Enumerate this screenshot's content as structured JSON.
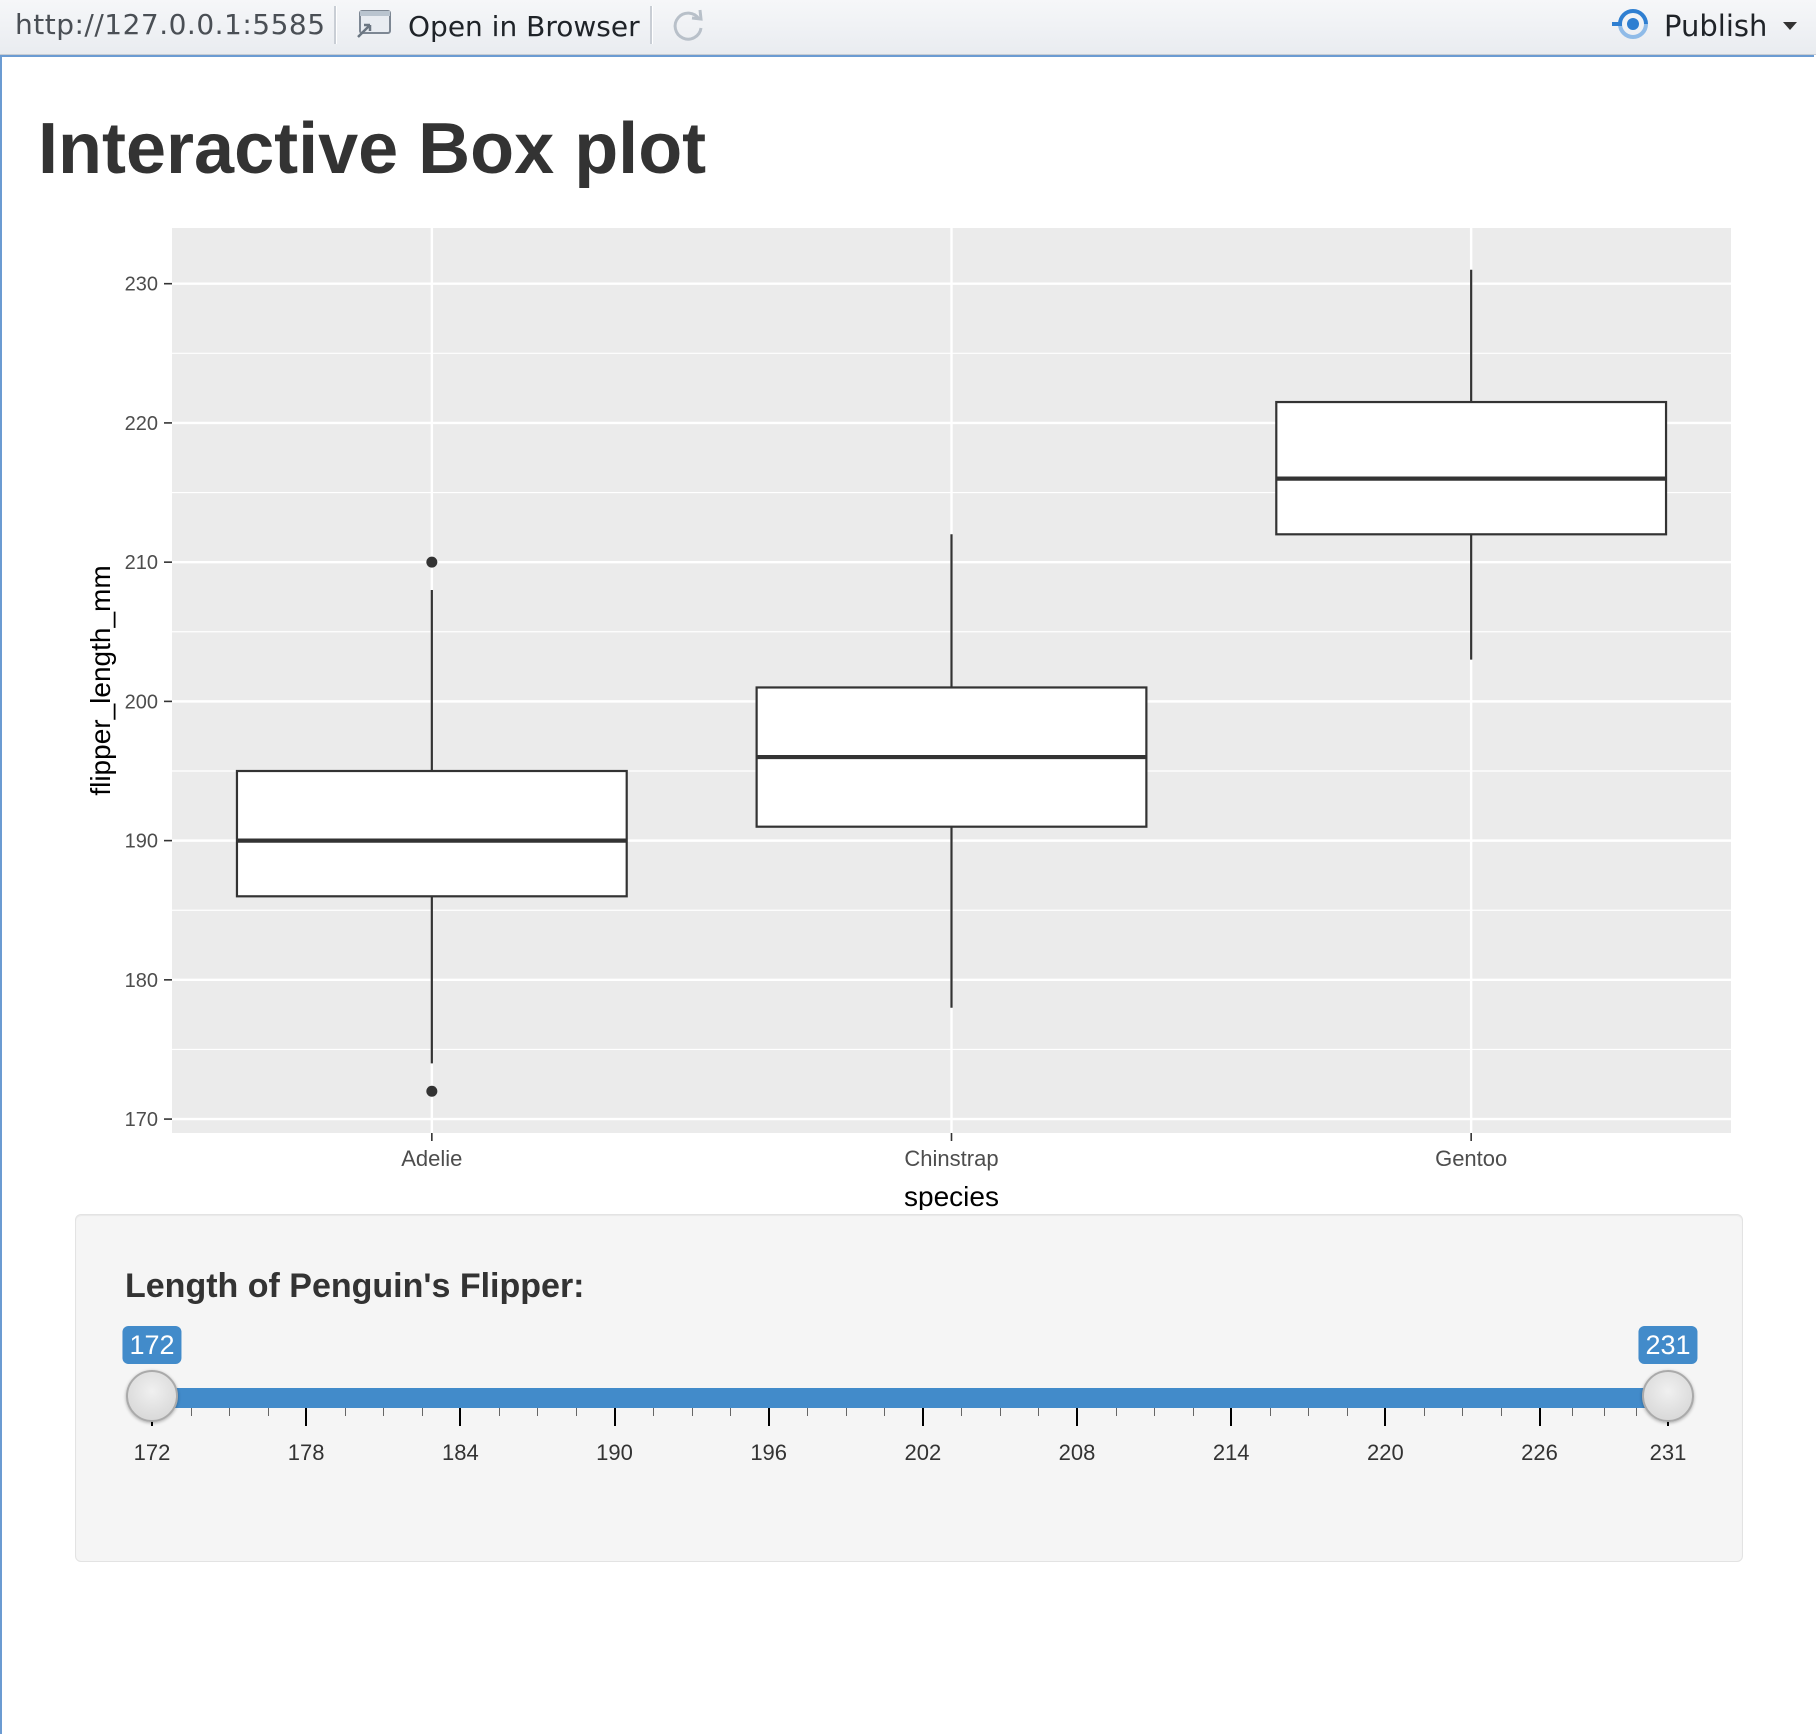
{
  "toolbar": {
    "url": "http://127.0.0.1:5585",
    "open_label": "Open in Browser",
    "refresh_icon": "refresh-icon",
    "publish_label": "Publish",
    "publish_icon": "publish-icon",
    "accent": "#2f7fd1"
  },
  "page": {
    "title": "Interactive Box plot"
  },
  "chart_data": {
    "type": "boxplot",
    "title": "",
    "xlabel": "species",
    "ylabel": "flipper_length_mm",
    "categories": [
      "Adelie",
      "Chinstrap",
      "Gentoo"
    ],
    "ylim": [
      169,
      234
    ],
    "yticks": [
      170,
      180,
      190,
      200,
      210,
      220,
      230
    ],
    "boxes": [
      {
        "category": "Adelie",
        "whisker_low": 174,
        "q1": 186,
        "median": 190,
        "q3": 195,
        "whisker_high": 208,
        "outliers": [
          172,
          210
        ]
      },
      {
        "category": "Chinstrap",
        "whisker_low": 178,
        "q1": 191,
        "median": 196,
        "q3": 201,
        "whisker_high": 212,
        "outliers": []
      },
      {
        "category": "Gentoo",
        "whisker_low": 203,
        "q1": 212,
        "median": 216,
        "q3": 221.5,
        "whisker_high": 231,
        "outliers": []
      }
    ],
    "panel_background": "#ebebeb",
    "grid": true,
    "legend": "none"
  },
  "slider": {
    "label": "Length of Penguin's Flipper:",
    "min": 172,
    "max": 231,
    "from": 172,
    "to": 231,
    "from_label": "172",
    "to_label": "231",
    "major_ticks": [
      "172",
      "178",
      "184",
      "190",
      "196",
      "202",
      "208",
      "214",
      "220",
      "226",
      "231"
    ],
    "bar_color": "#428bca"
  }
}
